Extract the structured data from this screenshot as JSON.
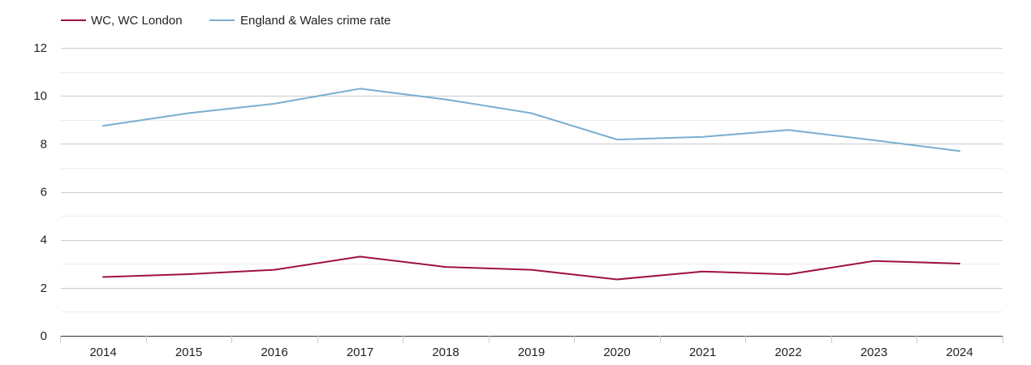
{
  "chart_data": {
    "type": "line",
    "title": "",
    "xlabel": "",
    "ylabel": "",
    "x": [
      "2014",
      "2015",
      "2016",
      "2017",
      "2018",
      "2019",
      "2020",
      "2021",
      "2022",
      "2023",
      "2024"
    ],
    "ylim": [
      0,
      12
    ],
    "y_ticks": [
      "0",
      "2",
      "4",
      "6",
      "8",
      "10",
      "12"
    ],
    "grid": true,
    "legend_placement": "top-left",
    "series": [
      {
        "name": "WC, WC London",
        "color": "#a0103e",
        "values": [
          2.45,
          2.57,
          2.75,
          3.3,
          2.87,
          2.75,
          2.35,
          2.68,
          2.56,
          3.12,
          3.01
        ]
      },
      {
        "name": "England & Wales crime rate",
        "color": "#7aaed0",
        "values": [
          8.75,
          9.28,
          9.67,
          10.3,
          9.85,
          9.28,
          8.18,
          8.29,
          8.58,
          8.15,
          7.7
        ]
      }
    ]
  }
}
